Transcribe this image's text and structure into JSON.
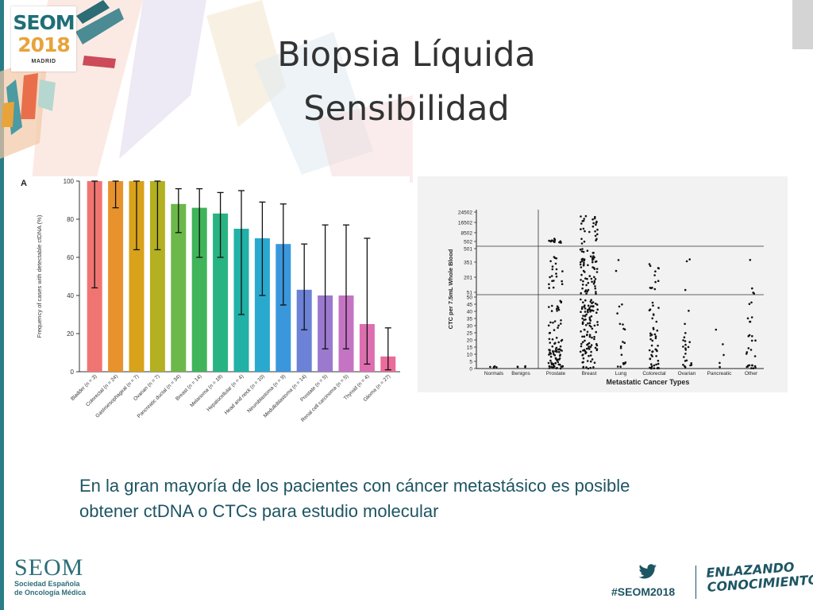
{
  "slide": {
    "title_line1": "Biopsia Líquida",
    "title_line2": "Sensibilidad",
    "body": "En la gran mayoría de los pacientes con cáncer metastásico es posible obtener ctDNA o CTCs para estudio molecular"
  },
  "brand": {
    "logo_seom": "SEOM",
    "logo_year": "2018",
    "logo_city": "MADRID",
    "footer_word": "SEOM",
    "footer_sub1": "Sociedad Española",
    "footer_sub2": "de Oncología Médica",
    "hashtag": "#SEOM2018",
    "tagline_line1": "ENLAZANDO",
    "tagline_line2": "CONOCIMIENTO",
    "accent_color": "#2a7d86",
    "logo_orange": "#e8a33a"
  },
  "icons": {
    "twitter": "twitter-bird-icon"
  },
  "chart_data": [
    {
      "type": "bar",
      "panel_label": "A",
      "ylabel": "Frequency of cases with detectable ctDNA (%)",
      "ylim": [
        0,
        100
      ],
      "yticks": [
        0,
        20,
        40,
        60,
        80,
        100
      ],
      "categories": [
        "Bladder (n = 3)",
        "Colorectal (n = 24)",
        "Gastroesophageal (n = 7)",
        "Ovarian (n = 7)",
        "Pancreatic ductal (n = 34)",
        "Breast (n = 14)",
        "Melanoma (n = 18)",
        "Hepatocellular (n = 4)",
        "Head and neck (n = 10)",
        "Neuroblastoma (n = 9)",
        "Medulloblastoma (n = 14)",
        "Prostate (n = 5)",
        "Renal cell carcinoma (n = 5)",
        "Thyroid (n = 4)",
        "Glioma (n = 27)"
      ],
      "values": [
        100,
        100,
        100,
        100,
        88,
        86,
        83,
        75,
        70,
        67,
        43,
        40,
        40,
        25,
        8
      ],
      "error_low": [
        44,
        86,
        64,
        64,
        73,
        60,
        60,
        30,
        40,
        35,
        22,
        12,
        12,
        4,
        1
      ],
      "error_high": [
        100,
        100,
        100,
        100,
        96,
        96,
        94,
        95,
        89,
        88,
        67,
        77,
        77,
        70,
        23
      ],
      "colors": [
        "#f07572",
        "#e8922d",
        "#d9a21b",
        "#b3b021",
        "#6cb84a",
        "#3fb45a",
        "#27b382",
        "#21b1a6",
        "#2aa9cf",
        "#3a97dc",
        "#6b82d6",
        "#9b79cf",
        "#c574c4",
        "#dd6fb0",
        "#ea6c9a"
      ],
      "grid": false
    },
    {
      "type": "scatter",
      "xlabel": "Metastatic Cancer Types",
      "ylabel": "CTC per 7.5mL Whole Blood",
      "categories": [
        "Normals",
        "Benigns",
        "Prostate",
        "Breast",
        "Lung",
        "Colorectal",
        "Ovarian",
        "Pancreatic",
        "Other"
      ],
      "yticks": [
        "0",
        "5",
        "10",
        "15",
        "20",
        "25",
        "30",
        "35",
        "40",
        "45",
        "50",
        "51",
        "201",
        "351",
        "501",
        "502",
        "8502",
        "16502",
        "24502"
      ],
      "thresholds": [
        "50",
        "500"
      ],
      "point_counts": [
        5,
        4,
        120,
        200,
        20,
        60,
        25,
        5,
        30
      ],
      "y_scale": "piecewise (linear 0–50, compressed 51–501, compressed 502–24502)"
    }
  ]
}
